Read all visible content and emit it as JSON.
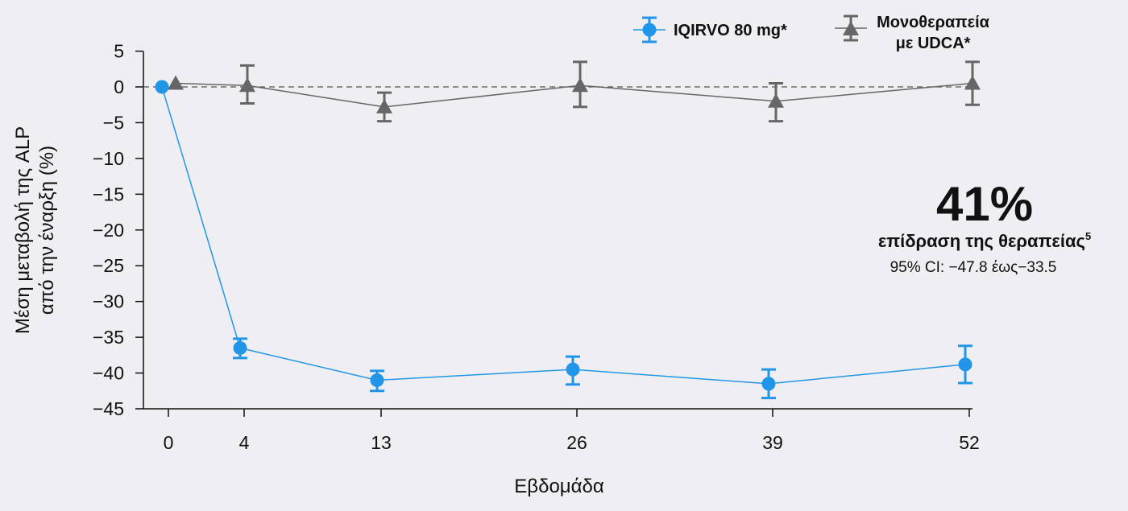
{
  "chart_data": {
    "type": "line",
    "xlabel": "Εβδομάδα",
    "ylabel_line1": "Μέση μεταβολή της ALP",
    "ylabel_line2": "από την έναρξη (%)",
    "x_ticks": [
      "0",
      "4",
      "13",
      "26",
      "39",
      "52"
    ],
    "y_ticks": [
      "5",
      "0",
      "−5",
      "−10",
      "−15",
      "−20",
      "−25",
      "−30",
      "−35",
      "−40",
      "−45"
    ],
    "ylim": [
      -45,
      5
    ],
    "reference_line_y": 0,
    "grid": false,
    "legend_position": "top-right",
    "series": [
      {
        "name": "IQIRVO 80 mg*",
        "color": "#2196e8",
        "marker": "circle",
        "x": [
          0,
          4,
          13,
          26,
          39,
          52
        ],
        "y": [
          0,
          -36.5,
          -41,
          -39.5,
          -41.5,
          -38.8
        ],
        "err_low": [
          0,
          1.4,
          1.5,
          2.1,
          2.0,
          2.6
        ],
        "err_high": [
          0,
          1.3,
          1.3,
          1.8,
          2.0,
          2.6
        ]
      },
      {
        "name_line1": "Μονοθεραπεία",
        "name_line2": "με UDCA*",
        "color": "#666666",
        "marker": "triangle",
        "x": [
          0,
          4,
          13,
          26,
          39,
          52
        ],
        "y": [
          0.5,
          0.2,
          -2.8,
          0.2,
          -2.0,
          0.5
        ],
        "err_low": [
          0,
          2.5,
          2.0,
          3.0,
          2.8,
          3.0
        ],
        "err_high": [
          0,
          2.8,
          2.0,
          3.3,
          2.5,
          3.0
        ]
      }
    ],
    "annotation": {
      "percent": "41%",
      "label": "επίδραση της θεραπείας",
      "superscript": "5",
      "ci": "95% CI: −47.8 έως−33.5"
    }
  }
}
